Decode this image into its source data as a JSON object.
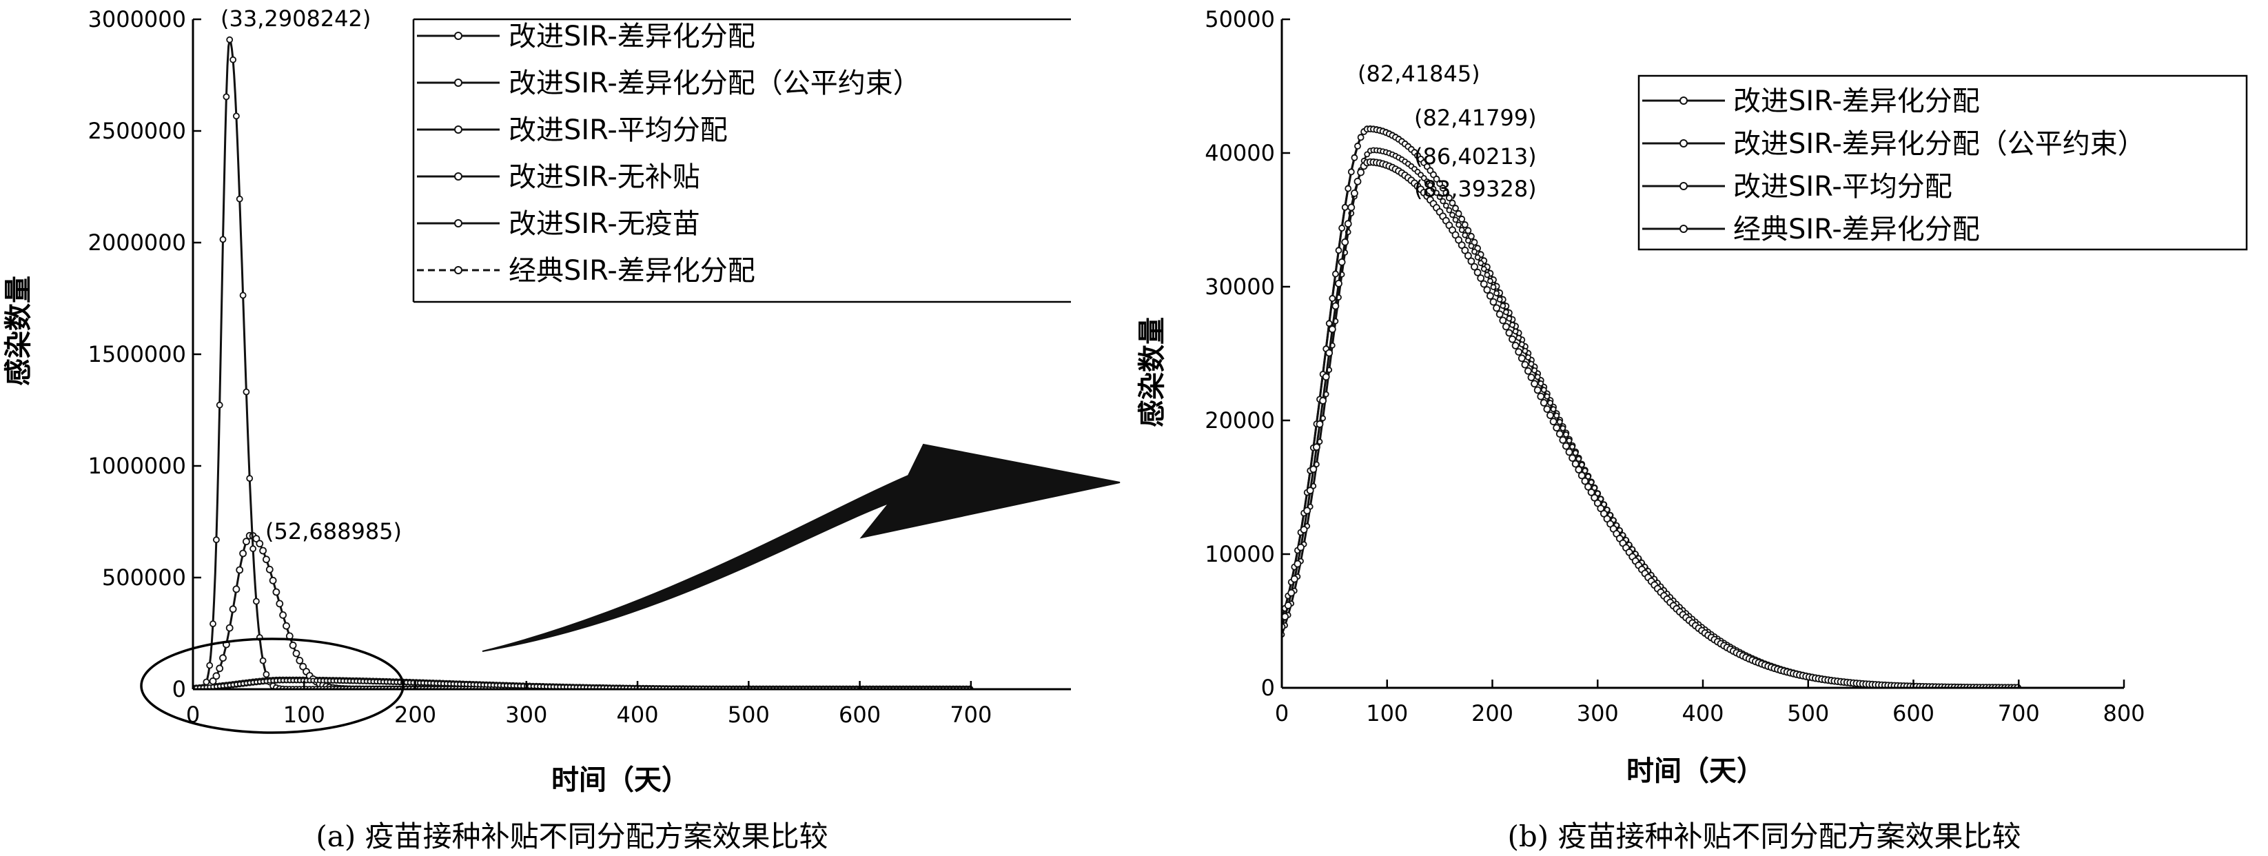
{
  "chart_data": [
    {
      "type": "line",
      "caption": "(a) 疫苗接种补贴不同分配方案效果比较",
      "xlabel": "时间（天）",
      "ylabel": "感染数量",
      "xlim": [
        0,
        790
      ],
      "ylim": [
        0,
        3000000
      ],
      "xticks": [
        0,
        100,
        200,
        300,
        400,
        500,
        600,
        700
      ],
      "yticks": [
        0,
        500000,
        1000000,
        1500000,
        2000000,
        2500000,
        3000000
      ],
      "legend_position": "top-right",
      "series": [
        {
          "name": "改进SIR-差异化分配",
          "peak_t": 82,
          "peak_v": 41845,
          "width": 40,
          "tail": 150
        },
        {
          "name": "改进SIR-差异化分配（公平约束）",
          "peak_t": 82,
          "peak_v": 41799,
          "width": 40,
          "tail": 150
        },
        {
          "name": "改进SIR-平均分配",
          "peak_t": 86,
          "peak_v": 40213,
          "width": 40,
          "tail": 150
        },
        {
          "name": "改进SIR-无补贴",
          "peak_t": 52,
          "peak_v": 688985,
          "width": 14,
          "tail": 24
        },
        {
          "name": "改进SIR-无疫苗",
          "peak_t": 33,
          "peak_v": 2908242,
          "width": 7,
          "tail": 12
        },
        {
          "name": "经典SIR-差异化分配",
          "peak_t": 83,
          "peak_v": 39328,
          "width": 40,
          "tail": 150
        }
      ],
      "annotations": [
        {
          "text": "(33,2908242)",
          "x": 33,
          "y": 2908242
        },
        {
          "text": "(52,688985)",
          "x": 52,
          "y": 688985
        }
      ]
    },
    {
      "type": "line",
      "caption": "(b) 疫苗接种补贴不同分配方案效果比较",
      "xlabel": "时间（天）",
      "ylabel": "感染数量",
      "xlim": [
        0,
        800
      ],
      "ylim": [
        0,
        50000
      ],
      "xticks": [
        0,
        100,
        200,
        300,
        400,
        500,
        600,
        700,
        800
      ],
      "yticks": [
        0,
        10000,
        20000,
        30000,
        40000,
        50000
      ],
      "legend_position": "top-right",
      "series": [
        {
          "name": "改进SIR-差异化分配",
          "peak_t": 82,
          "peak_v": 41845,
          "width": 40,
          "tail": 150
        },
        {
          "name": "改进SIR-差异化分配（公平约束）",
          "peak_t": 82,
          "peak_v": 41799,
          "width": 40,
          "tail": 150
        },
        {
          "name": "改进SIR-平均分配",
          "peak_t": 86,
          "peak_v": 40213,
          "width": 40,
          "tail": 150
        },
        {
          "name": "经典SIR-差异化分配",
          "peak_t": 83,
          "peak_v": 39328,
          "width": 40,
          "tail": 150
        }
      ],
      "annotations": [
        {
          "text": "(82,41845)",
          "x": 82,
          "y": 41845
        },
        {
          "text": "(82,41799)",
          "x": 82,
          "y": 41799
        },
        {
          "text": "(86,40213)",
          "x": 86,
          "y": 40213
        },
        {
          "text": "(83,39328)",
          "x": 83,
          "y": 39328
        }
      ]
    }
  ]
}
